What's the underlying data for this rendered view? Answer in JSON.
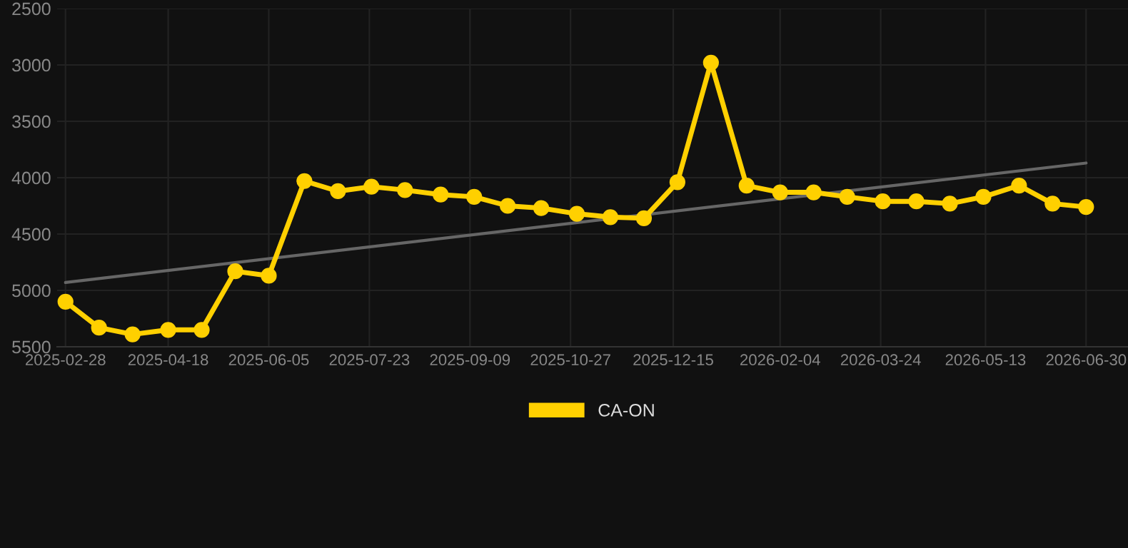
{
  "chart_data": {
    "type": "line",
    "x": [
      "2025-02-28",
      "2025-03-16",
      "2025-04-01",
      "2025-04-18",
      "2025-05-04",
      "2025-05-20",
      "2025-06-05",
      "2025-06-22",
      "2025-07-08",
      "2025-07-24",
      "2025-08-09",
      "2025-08-26",
      "2025-09-11",
      "2025-09-27",
      "2025-10-13",
      "2025-10-30",
      "2025-11-15",
      "2025-12-01",
      "2025-12-17",
      "2026-01-02",
      "2026-01-19",
      "2026-02-04",
      "2026-02-20",
      "2026-03-08",
      "2026-03-25",
      "2026-04-10",
      "2026-04-26",
      "2026-05-12",
      "2026-05-29",
      "2026-06-14",
      "2026-06-30"
    ],
    "series": [
      {
        "name": "CA-ON",
        "color": "#ffd000",
        "marker": "circle",
        "values": [
          5100,
          5330,
          5390,
          5350,
          5350,
          4830,
          4870,
          4030,
          4120,
          4080,
          4110,
          4150,
          4170,
          4250,
          4270,
          4320,
          4350,
          4360,
          4040,
          2980,
          4070,
          4130,
          4130,
          4170,
          4210,
          4210,
          4230,
          4170,
          4070,
          4230,
          4260
        ]
      },
      {
        "type": "line",
        "color": "#666666",
        "marker": "none",
        "x": [
          "2025-02-28",
          "2026-06-30"
        ],
        "values": [
          4930,
          3870
        ]
      }
    ],
    "xlim": [
      "2025-02-24",
      "2026-07-20"
    ],
    "xticks": [
      "2025-02-28",
      "2025-04-18",
      "2025-06-05",
      "2025-07-23",
      "2025-09-09",
      "2025-10-27",
      "2025-12-15",
      "2026-02-04",
      "2026-03-24",
      "2026-05-13",
      "2026-06-30"
    ],
    "ylim": [
      5500,
      2500
    ],
    "yticks": [
      2500,
      3000,
      3500,
      4000,
      4500,
      5000,
      5500
    ],
    "grid": true,
    "legend": "bottom"
  }
}
